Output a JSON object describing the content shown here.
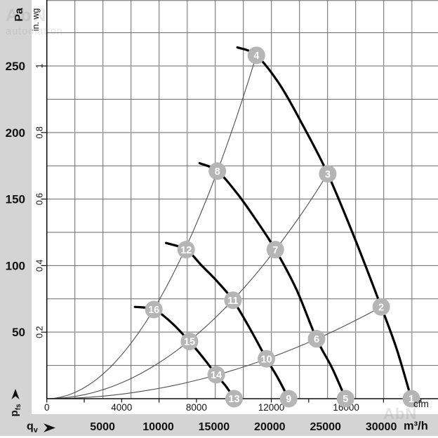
{
  "watermarks": {
    "top_left_line1": "AbN",
    "top_left_line2": "automation",
    "bottom_right": "AbN"
  },
  "axes": {
    "pressure_unit": "Pa",
    "pressure_unit_secondary": "in. wg",
    "pressure_ticks_pa": [
      "250",
      "200",
      "150",
      "100",
      "50"
    ],
    "pressure_ticks_inwg": [
      "1",
      "0.8",
      "0.6",
      "0.4",
      "0.2"
    ],
    "flow_unit_inner": "cfm",
    "flow_ticks_cfm": [
      "0",
      "4000",
      "8000",
      "12000",
      "16000"
    ],
    "flow_unit_outer": "m³/h",
    "flow_ticks_m3h": [
      "5000",
      "10000",
      "15000",
      "20000",
      "25000",
      "30000"
    ],
    "flow_symbol": {
      "main": "q",
      "sub": "v"
    },
    "pressure_symbol": {
      "main": "p",
      "sub": "fs"
    }
  },
  "chart_data": {
    "type": "line",
    "x_unit": "m³/h",
    "x_unit_secondary": "cfm",
    "y_unit": "Pa",
    "y_unit_secondary": "in. wg",
    "x_range": [
      0,
      35000
    ],
    "y_range": [
      0,
      300
    ],
    "grid": "on",
    "fan_curves": [
      {
        "name": "fan-curve-1",
        "marker_labels": [
          "4",
          "3",
          "2",
          "1"
        ],
        "points": [
          [
            17100,
            264
          ],
          [
            18800,
            258
          ],
          [
            20900,
            236
          ],
          [
            23000,
            205
          ],
          [
            25200,
            169
          ],
          [
            27600,
            121
          ],
          [
            30000,
            69
          ],
          [
            31400,
            37
          ],
          [
            32700,
            0
          ]
        ]
      },
      {
        "name": "fan-curve-2",
        "marker_labels": [
          "8",
          "7",
          "6",
          "5"
        ],
        "points": [
          [
            13700,
            177
          ],
          [
            15300,
            171
          ],
          [
            17100,
            154
          ],
          [
            18800,
            134
          ],
          [
            20500,
            112
          ],
          [
            22400,
            82
          ],
          [
            24200,
            45
          ],
          [
            25600,
            23
          ],
          [
            26800,
            0
          ]
        ]
      },
      {
        "name": "fan-curve-3",
        "marker_labels": [
          "12",
          "11",
          "10",
          "9"
        ],
        "points": [
          [
            10700,
            117
          ],
          [
            12500,
            112
          ],
          [
            13900,
            100
          ],
          [
            15300,
            88
          ],
          [
            16700,
            74
          ],
          [
            18200,
            53
          ],
          [
            19700,
            30
          ],
          [
            20700,
            16
          ],
          [
            21700,
            0
          ]
        ]
      },
      {
        "name": "fan-curve-4",
        "marker_labels": [
          "16",
          "15",
          "14",
          "13"
        ],
        "points": [
          [
            7900,
            69
          ],
          [
            9600,
            67
          ],
          [
            11200,
            57
          ],
          [
            12800,
            43
          ],
          [
            14100,
            30
          ],
          [
            15200,
            18
          ],
          [
            16100,
            9
          ],
          [
            16800,
            0
          ]
        ]
      }
    ],
    "system_curves": [
      {
        "name": "system-curve-a",
        "end": [
          18800,
          258
        ]
      },
      {
        "name": "system-curve-b",
        "end": [
          25200,
          169
        ]
      },
      {
        "name": "system-curve-c",
        "end": [
          30000,
          69
        ]
      },
      {
        "name": "system-curve-d",
        "end": [
          32700,
          0
        ]
      }
    ],
    "markers": [
      {
        "label": "1",
        "m3h": 32700,
        "pa": 0
      },
      {
        "label": "2",
        "m3h": 30000,
        "pa": 69
      },
      {
        "label": "3",
        "m3h": 25200,
        "pa": 169
      },
      {
        "label": "4",
        "m3h": 18800,
        "pa": 258
      },
      {
        "label": "5",
        "m3h": 26800,
        "pa": 0
      },
      {
        "label": "6",
        "m3h": 24200,
        "pa": 45
      },
      {
        "label": "7",
        "m3h": 20500,
        "pa": 112
      },
      {
        "label": "8",
        "m3h": 15300,
        "pa": 171
      },
      {
        "label": "9",
        "m3h": 21700,
        "pa": 0
      },
      {
        "label": "10",
        "m3h": 19700,
        "pa": 30
      },
      {
        "label": "11",
        "m3h": 16700,
        "pa": 74
      },
      {
        "label": "12",
        "m3h": 12500,
        "pa": 112
      },
      {
        "label": "13",
        "m3h": 16800,
        "pa": 0
      },
      {
        "label": "14",
        "m3h": 15200,
        "pa": 18
      },
      {
        "label": "15",
        "m3h": 12800,
        "pa": 43
      },
      {
        "label": "16",
        "m3h": 9600,
        "pa": 67
      }
    ]
  }
}
